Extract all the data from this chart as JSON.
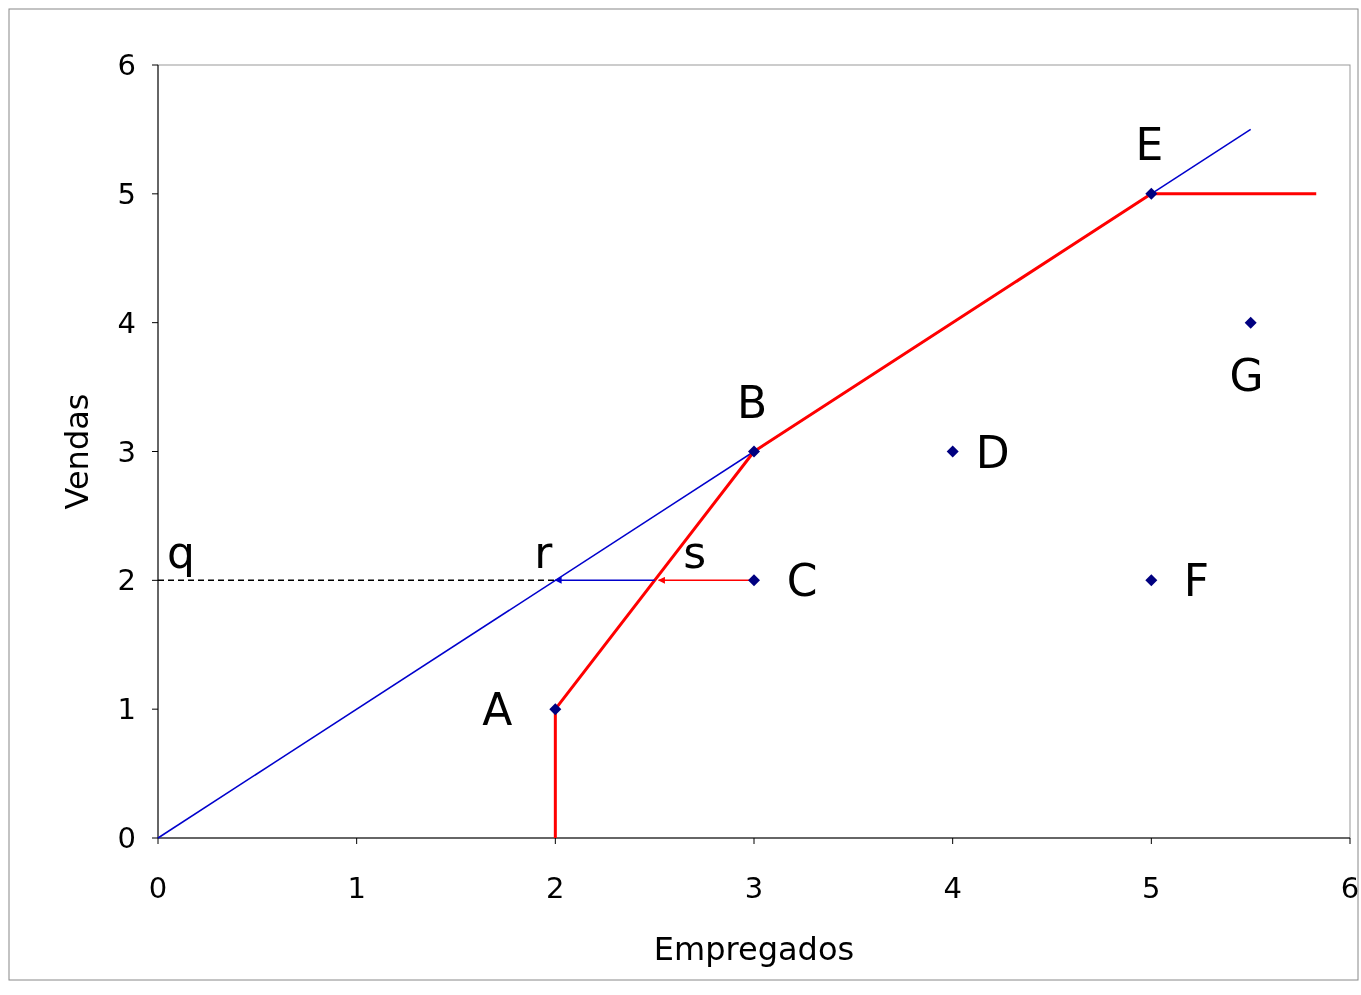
{
  "chart_data": {
    "type": "scatter",
    "xlabel": "Empregados",
    "ylabel": "Vendas",
    "xlim": [
      0,
      6
    ],
    "ylim": [
      0,
      6
    ],
    "xticks": [
      0,
      1,
      2,
      3,
      4,
      5,
      6
    ],
    "yticks": [
      0,
      1,
      2,
      3,
      4,
      5,
      6
    ],
    "grid": false,
    "marker": "diamond",
    "series": [
      {
        "type": "line",
        "marker": "none",
        "color": "#0000cc",
        "x": [
          0,
          5.5
        ],
        "values": [
          0,
          5.5
        ]
      },
      {
        "type": "line",
        "marker": "none",
        "color": "#ff0000",
        "x": [
          2,
          2,
          3,
          5,
          5.83
        ],
        "values": [
          0,
          1,
          3,
          5,
          5
        ]
      },
      {
        "type": "line",
        "marker": "none",
        "color": "#000000",
        "line_style": "dashed",
        "x": [
          0,
          2
        ],
        "values": [
          2,
          2
        ]
      },
      {
        "type": "line",
        "marker": "none",
        "color": "#0000cc",
        "x": [
          2.5,
          2
        ],
        "values": [
          2,
          2
        ]
      },
      {
        "type": "line",
        "marker": "none",
        "color": "#ff0000",
        "x": [
          3,
          2.52
        ],
        "values": [
          2,
          2
        ]
      },
      {
        "color": "#000080",
        "x": [
          2,
          3,
          3,
          4,
          5,
          5,
          5.5
        ],
        "values": [
          1,
          3,
          2,
          3,
          5,
          2,
          4
        ]
      }
    ],
    "annotations": [
      {
        "text": "A",
        "x": 2,
        "y": 1
      },
      {
        "text": "B",
        "x": 3,
        "y": 3
      },
      {
        "text": "C",
        "x": 3,
        "y": 2
      },
      {
        "text": "D",
        "x": 4,
        "y": 3
      },
      {
        "text": "E",
        "x": 5,
        "y": 5
      },
      {
        "text": "F",
        "x": 5,
        "y": 2
      },
      {
        "text": "G",
        "x": 5.5,
        "y": 4
      },
      {
        "text": "q",
        "x": 0,
        "y": 2
      },
      {
        "text": "r",
        "x": 2,
        "y": 2
      },
      {
        "text": "s",
        "x": 2.5,
        "y": 2
      }
    ]
  }
}
